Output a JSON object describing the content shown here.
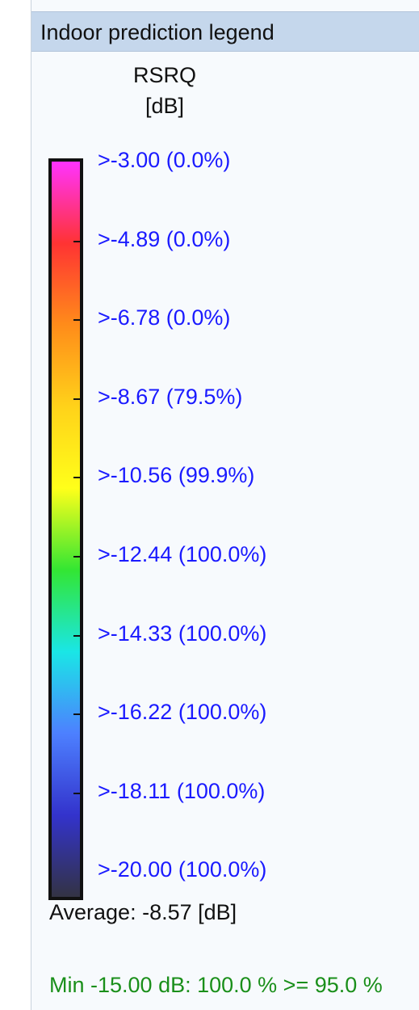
{
  "window": {
    "title": "Indoor prediction legend"
  },
  "legend": {
    "quantity": "RSRQ",
    "unit": "[dB]",
    "gradient_colors": [
      "#ff33ff",
      "#ff3333",
      "#ff8c1a",
      "#ffd21a",
      "#ffff1a",
      "#33e633",
      "#1ae6e6",
      "#4d80ff",
      "#3333cc",
      "#333344"
    ],
    "levels": [
      {
        "label": ">-3.00 (0.0%)",
        "threshold": -3.0,
        "percent": 0.0
      },
      {
        "label": ">-4.89 (0.0%)",
        "threshold": -4.89,
        "percent": 0.0
      },
      {
        "label": ">-6.78 (0.0%)",
        "threshold": -6.78,
        "percent": 0.0
      },
      {
        "label": ">-8.67 (79.5%)",
        "threshold": -8.67,
        "percent": 79.5
      },
      {
        "label": ">-10.56 (99.9%)",
        "threshold": -10.56,
        "percent": 99.9
      },
      {
        "label": ">-12.44 (100.0%)",
        "threshold": -12.44,
        "percent": 100.0
      },
      {
        "label": ">-14.33 (100.0%)",
        "threshold": -14.33,
        "percent": 100.0
      },
      {
        "label": ">-16.22 (100.0%)",
        "threshold": -16.22,
        "percent": 100.0
      },
      {
        "label": ">-18.11 (100.0%)",
        "threshold": -18.11,
        "percent": 100.0
      },
      {
        "label": ">-20.00 (100.0%)",
        "threshold": -20.0,
        "percent": 100.0
      }
    ],
    "level_color": "#1a1aff",
    "average": "Average: -8.57 [dB]",
    "criterion": "Min -15.00 dB: 100.0 % >= 95.0 %",
    "criterion_color": "#1a8f1a"
  }
}
